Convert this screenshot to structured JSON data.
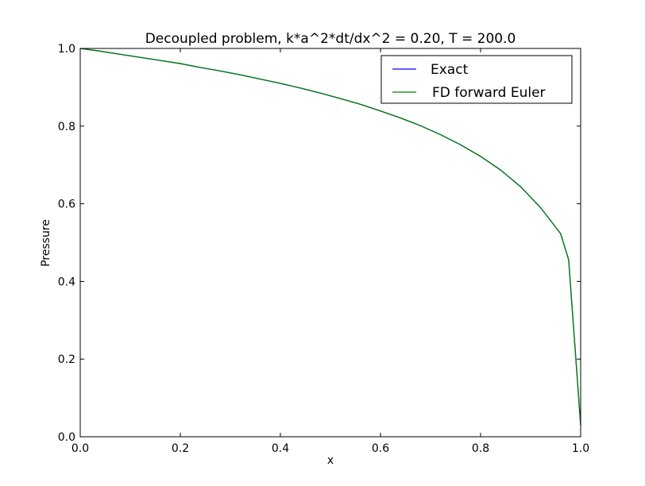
{
  "chart_data": {
    "type": "line",
    "title": "Decoupled problem, k*a^2*dt/dx^2 = 0.20, T = 200.0",
    "xlabel": "x",
    "ylabel": "Pressure",
    "xlim": [
      0.0,
      1.0
    ],
    "ylim": [
      0.0,
      1.0
    ],
    "x_ticks": [
      "0.0",
      "0.2",
      "0.4",
      "0.6",
      "0.8",
      "1.0"
    ],
    "y_ticks": [
      "0.0",
      "0.2",
      "0.4",
      "0.6",
      "0.8",
      "1.0"
    ],
    "grid": false,
    "legend": {
      "placement": "top-right",
      "entries": [
        "Exact",
        "FD forward Euler"
      ]
    },
    "series": [
      {
        "name": "Exact",
        "color": "#0000ff",
        "x": [
          0.0,
          0.04,
          0.08,
          0.12,
          0.16,
          0.2,
          0.24,
          0.28,
          0.32,
          0.36,
          0.4,
          0.44,
          0.48,
          0.52,
          0.56,
          0.6,
          0.64,
          0.68,
          0.72,
          0.76,
          0.8,
          0.84,
          0.88,
          0.92,
          0.96,
          0.976,
          1.0
        ],
        "y": [
          1.0,
          0.993,
          0.985,
          0.977,
          0.969,
          0.961,
          0.951,
          0.942,
          0.932,
          0.921,
          0.91,
          0.898,
          0.885,
          0.871,
          0.856,
          0.839,
          0.821,
          0.801,
          0.778,
          0.752,
          0.722,
          0.687,
          0.644,
          0.59,
          0.523,
          0.456,
          0.03
        ]
      },
      {
        "name": "FD forward Euler",
        "color": "#008000",
        "x": [
          0.0,
          0.04,
          0.08,
          0.12,
          0.16,
          0.2,
          0.24,
          0.28,
          0.32,
          0.36,
          0.4,
          0.44,
          0.48,
          0.52,
          0.56,
          0.6,
          0.64,
          0.68,
          0.72,
          0.76,
          0.8,
          0.84,
          0.88,
          0.92,
          0.96,
          0.976,
          1.0
        ],
        "y": [
          1.0,
          0.993,
          0.985,
          0.977,
          0.969,
          0.961,
          0.951,
          0.942,
          0.932,
          0.921,
          0.91,
          0.898,
          0.885,
          0.871,
          0.856,
          0.839,
          0.821,
          0.801,
          0.778,
          0.752,
          0.722,
          0.687,
          0.644,
          0.59,
          0.523,
          0.456,
          0.03
        ]
      }
    ]
  }
}
